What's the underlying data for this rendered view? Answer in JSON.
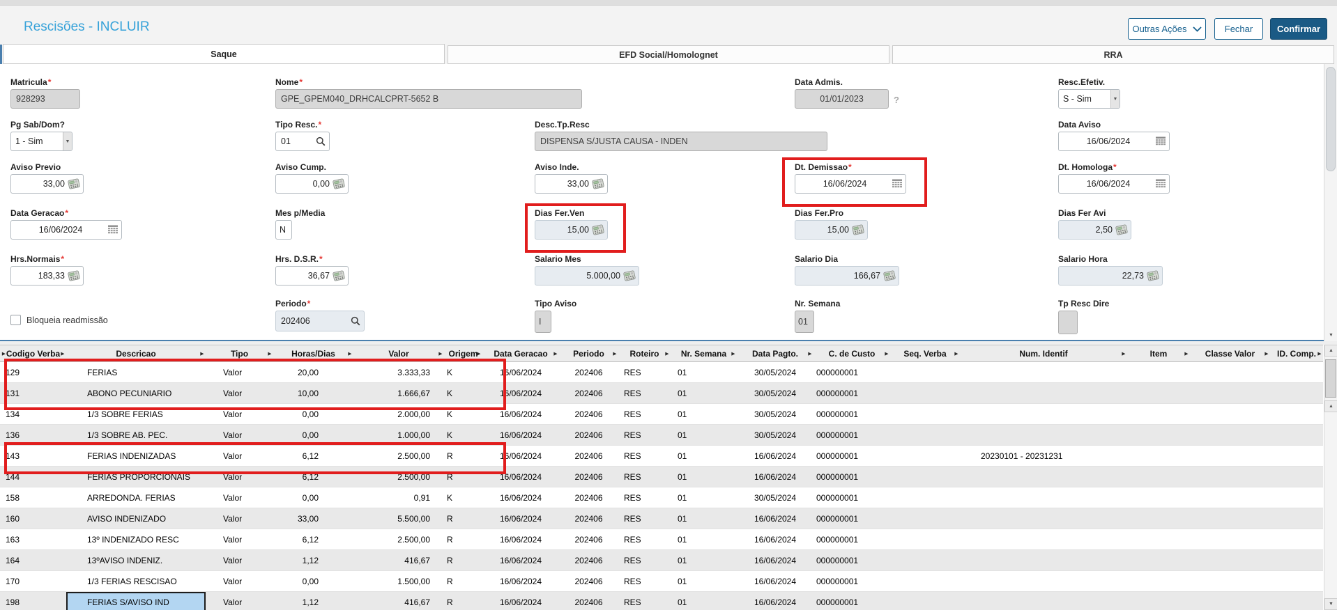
{
  "window": {
    "title": "Rescisões - INCLUIR"
  },
  "actions": {
    "outras_acoes": "Outras Ações",
    "fechar": "Fechar",
    "confirmar": "Confirmar"
  },
  "tabs": [
    {
      "label": "Saque",
      "active": true
    },
    {
      "label": "EFD Social/Homolognet",
      "active": false
    },
    {
      "label": "RRA",
      "active": false
    }
  ],
  "form": {
    "fields": {
      "matricula": {
        "label": "Matricula",
        "required": true,
        "value": "928293"
      },
      "nome": {
        "label": "Nome",
        "required": true,
        "value": "GPE_GPEM040_DRHCALCPRT-5652 B"
      },
      "data_admis": {
        "label": "Data Admis.",
        "required": false,
        "value": "01/01/2023",
        "helper": "?"
      },
      "resc_efetiv": {
        "label": "Resc.Efetiv.",
        "required": false,
        "value": "S - Sim"
      },
      "pg_sab_dom": {
        "label": "Pg Sab/Dom?",
        "required": false,
        "value": "1 - Sim"
      },
      "tipo_resc": {
        "label": "Tipo Resc.",
        "required": true,
        "value": "01"
      },
      "desc_tp_resc": {
        "label": "Desc.Tp.Resc",
        "required": false,
        "value": "DISPENSA S/JUSTA CAUSA - INDEN"
      },
      "data_aviso": {
        "label": "Data Aviso",
        "required": false,
        "value": "16/06/2024"
      },
      "aviso_previo": {
        "label": "Aviso Previo",
        "required": false,
        "value": "33,00"
      },
      "aviso_cump": {
        "label": "Aviso Cump.",
        "required": false,
        "value": "0,00"
      },
      "aviso_inde": {
        "label": "Aviso Inde.",
        "required": false,
        "value": "33,00"
      },
      "dt_demissao": {
        "label": "Dt. Demissao",
        "required": true,
        "value": "16/06/2024"
      },
      "dt_homologa": {
        "label": "Dt. Homologa",
        "required": true,
        "value": "16/06/2024"
      },
      "data_geracao": {
        "label": "Data Geracao",
        "required": true,
        "value": "16/06/2024"
      },
      "mes_pmedia": {
        "label": "Mes p/Media",
        "required": false,
        "value": "N"
      },
      "dias_fer_ven": {
        "label": "Dias Fer.Ven",
        "required": false,
        "value": "15,00"
      },
      "dias_fer_pro": {
        "label": "Dias Fer.Pro",
        "required": false,
        "value": "15,00"
      },
      "dias_fer_avi": {
        "label": "Dias Fer Avi",
        "required": false,
        "value": "2,50"
      },
      "hrs_normais": {
        "label": "Hrs.Normais",
        "required": true,
        "value": "183,33"
      },
      "hrs_dsr": {
        "label": "Hrs. D.S.R.",
        "required": true,
        "value": "36,67"
      },
      "salario_mes": {
        "label": "Salario Mes",
        "required": false,
        "value": "5.000,00"
      },
      "salario_dia": {
        "label": "Salario Dia",
        "required": false,
        "value": "166,67"
      },
      "salario_hora": {
        "label": "Salario Hora",
        "required": false,
        "value": "22,73"
      },
      "periodo": {
        "label": "Periodo",
        "required": true,
        "value": "202406"
      },
      "tipo_aviso": {
        "label": "Tipo Aviso",
        "required": false,
        "value": "I"
      },
      "nr_semana": {
        "label": "Nr. Semana",
        "required": false,
        "value": "01"
      },
      "tp_resc_dire": {
        "label": "Tp Resc Dire",
        "required": false,
        "value": ""
      }
    },
    "checkbox": {
      "label": "Bloqueia readmissão",
      "checked": false
    }
  },
  "grid": {
    "columns": [
      "Codigo Verba",
      "Descricao",
      "Tipo",
      "Horas/Dias",
      "Valor",
      "Origem",
      "Data Geracao",
      "Periodo",
      "Roteiro",
      "Nr. Semana",
      "Data Pagto.",
      "C. de Custo",
      "Seq. Verba",
      "Num. Identif",
      "Item",
      "Classe Valor",
      "ID. Comp."
    ],
    "rows": [
      [
        "129",
        "FERIAS",
        "Valor",
        "20,00",
        "3.333,33",
        "K",
        "16/06/2024",
        "202406",
        "RES",
        "01",
        "30/05/2024",
        "000000001",
        "",
        "",
        "",
        "",
        ""
      ],
      [
        "131",
        "ABONO PECUNIARIO",
        "Valor",
        "10,00",
        "1.666,67",
        "K",
        "16/06/2024",
        "202406",
        "RES",
        "01",
        "30/05/2024",
        "000000001",
        "",
        "",
        "",
        "",
        ""
      ],
      [
        "134",
        "1/3 SOBRE FERIAS",
        "Valor",
        "0,00",
        "2.000,00",
        "K",
        "16/06/2024",
        "202406",
        "RES",
        "01",
        "30/05/2024",
        "000000001",
        "",
        "",
        "",
        "",
        ""
      ],
      [
        "136",
        "1/3 SOBRE AB. PEC.",
        "Valor",
        "0,00",
        "1.000,00",
        "K",
        "16/06/2024",
        "202406",
        "RES",
        "01",
        "30/05/2024",
        "000000001",
        "",
        "",
        "",
        "",
        ""
      ],
      [
        "143",
        "FERIAS INDENIZADAS",
        "Valor",
        "6,12",
        "2.500,00",
        "R",
        "16/06/2024",
        "202406",
        "RES",
        "01",
        "16/06/2024",
        "000000001",
        "",
        "20230101 - 20231231",
        "",
        "",
        ""
      ],
      [
        "144",
        "FERIAS PROPORCIONAIS",
        "Valor",
        "6,12",
        "2.500,00",
        "R",
        "16/06/2024",
        "202406",
        "RES",
        "01",
        "16/06/2024",
        "000000001",
        "",
        "",
        "",
        "",
        ""
      ],
      [
        "158",
        "ARREDONDA. FERIAS",
        "Valor",
        "0,00",
        "0,91",
        "K",
        "16/06/2024",
        "202406",
        "RES",
        "01",
        "30/05/2024",
        "000000001",
        "",
        "",
        "",
        "",
        ""
      ],
      [
        "160",
        "AVISO INDENIZADO",
        "Valor",
        "33,00",
        "5.500,00",
        "R",
        "16/06/2024",
        "202406",
        "RES",
        "01",
        "16/06/2024",
        "000000001",
        "",
        "",
        "",
        "",
        ""
      ],
      [
        "163",
        "13º INDENIZADO RESC",
        "Valor",
        "6,12",
        "2.500,00",
        "R",
        "16/06/2024",
        "202406",
        "RES",
        "01",
        "16/06/2024",
        "000000001",
        "",
        "",
        "",
        "",
        ""
      ],
      [
        "164",
        "13ºAVISO INDENIZ.",
        "Valor",
        "1,12",
        "416,67",
        "R",
        "16/06/2024",
        "202406",
        "RES",
        "01",
        "16/06/2024",
        "000000001",
        "",
        "",
        "",
        "",
        ""
      ],
      [
        "170",
        "1/3 FERIAS RESCISAO",
        "Valor",
        "0,00",
        "1.500,00",
        "R",
        "16/06/2024",
        "202406",
        "RES",
        "01",
        "16/06/2024",
        "000000001",
        "",
        "",
        "",
        "",
        ""
      ],
      [
        "198",
        "FERIAS S/AVISO IND",
        "Valor",
        "1,12",
        "416,67",
        "R",
        "16/06/2024",
        "202406",
        "RES",
        "01",
        "16/06/2024",
        "000000001",
        "",
        "",
        "",
        "",
        ""
      ]
    ],
    "selected_cell": {
      "row": 11,
      "col": 1
    }
  },
  "annotations": {
    "color": "#e11d1d",
    "highlighted": [
      "Dt. Demissao field",
      "Dias Fer.Ven field",
      "grid rows 129 and 131",
      "grid row 143"
    ]
  }
}
